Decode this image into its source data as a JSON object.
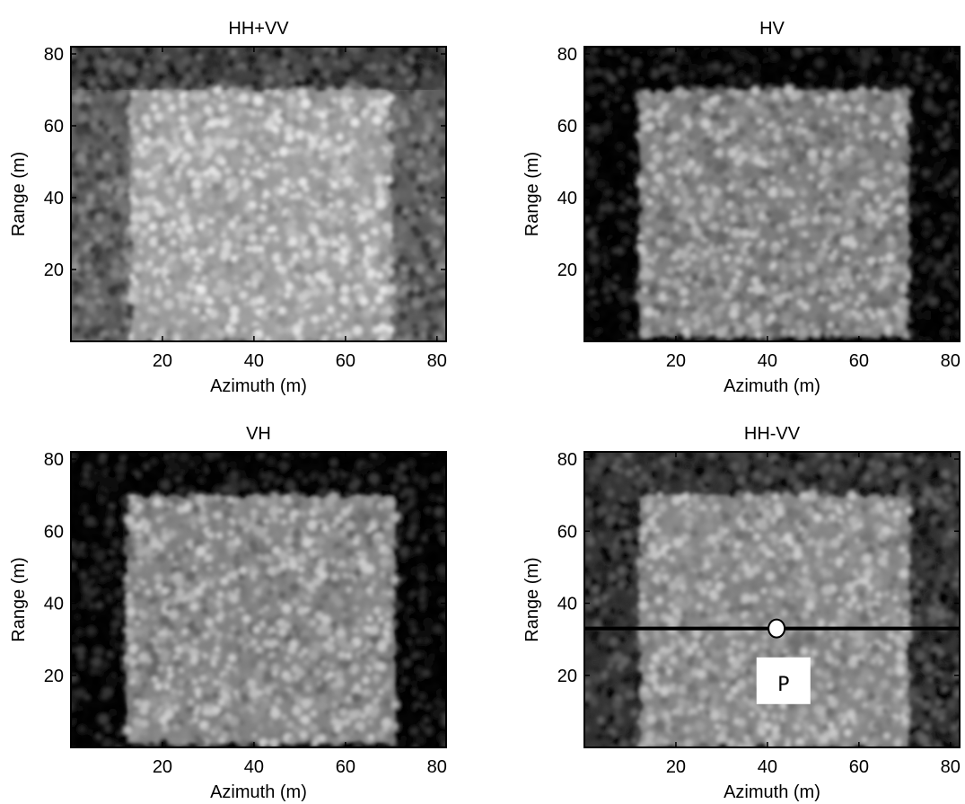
{
  "chart_data": [
    {
      "type": "heatmap",
      "title": "HH+VV",
      "xlabel": "Azimuth (m)",
      "ylabel": "Range (m)",
      "xlim": [
        0,
        82
      ],
      "ylim": [
        0,
        82
      ],
      "xticks": [
        20,
        40,
        60,
        80
      ],
      "yticks": [
        20,
        40,
        60,
        80
      ],
      "colormap": "gray",
      "background_level": 0.38,
      "grain_contrast": 0.22,
      "bright_region": {
        "x": [
          13,
          70
        ],
        "y": [
          0,
          70
        ],
        "level": 0.72
      },
      "dark_band_top": {
        "y": [
          70,
          82
        ],
        "level": 0.26
      }
    },
    {
      "type": "heatmap",
      "title": "HV",
      "xlabel": "Azimuth (m)",
      "ylabel": "Range (m)",
      "xlim": [
        0,
        82
      ],
      "ylim": [
        0,
        82
      ],
      "xticks": [
        20,
        40,
        60,
        80
      ],
      "yticks": [
        20,
        40,
        60,
        80
      ],
      "colormap": "gray",
      "background_level": 0.02,
      "grain_contrast": 0.24,
      "bright_region": {
        "x": [
          12,
          71
        ],
        "y": [
          1,
          70
        ],
        "level": 0.58
      }
    },
    {
      "type": "heatmap",
      "title": "VH",
      "xlabel": "Azimuth (m)",
      "ylabel": "Range (m)",
      "xlim": [
        0,
        82
      ],
      "ylim": [
        0,
        82
      ],
      "xticks": [
        20,
        40,
        60,
        80
      ],
      "yticks": [
        20,
        40,
        60,
        80
      ],
      "colormap": "gray",
      "background_level": 0.02,
      "grain_contrast": 0.24,
      "bright_region": {
        "x": [
          12,
          71
        ],
        "y": [
          1,
          70
        ],
        "level": 0.6
      }
    },
    {
      "type": "heatmap",
      "title": "HH-VV",
      "xlabel": "Azimuth (m)",
      "ylabel": "Range (m)",
      "xlim": [
        0,
        82
      ],
      "ylim": [
        0,
        82
      ],
      "xticks": [
        20,
        40,
        60,
        80
      ],
      "yticks": [
        20,
        40,
        60,
        80
      ],
      "colormap": "gray",
      "background_level": 0.2,
      "grain_contrast": 0.22,
      "bright_region": {
        "x": [
          12,
          71
        ],
        "y": [
          0,
          70
        ],
        "level": 0.62
      },
      "horizontal_line": {
        "y": 33
      },
      "marker": {
        "x": 42,
        "y": 33
      },
      "annotation": {
        "text": "P",
        "x": 43.5,
        "y": 18
      }
    }
  ]
}
